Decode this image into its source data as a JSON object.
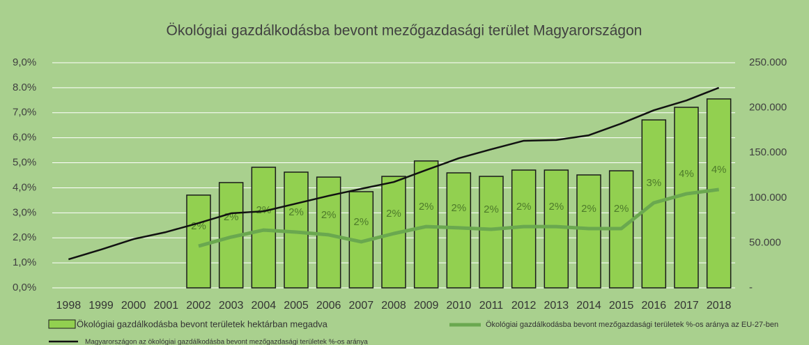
{
  "chart_data": {
    "type": "bar",
    "title": "Ökológiai gazdálkodásba bevont mezőgazdasági terület Magyarországon",
    "categories": [
      "1998",
      "1999",
      "2000",
      "2001",
      "2002",
      "2003",
      "2004",
      "2005",
      "2006",
      "2007",
      "2008",
      "2009",
      "2010",
      "2011",
      "2012",
      "2013",
      "2014",
      "2015",
      "2016",
      "2017",
      "2018"
    ],
    "series": [
      {
        "name": "Ökológiai gazdálkodásba bevont területek hektárban megadva",
        "type": "bar",
        "axis": "y2",
        "color": "#92d050",
        "values": [
          null,
          null,
          null,
          null,
          103000,
          116900,
          133900,
          128500,
          123000,
          106800,
          123800,
          140900,
          127700,
          123800,
          130800,
          130800,
          125400,
          130000,
          186500,
          200500,
          209800
        ]
      },
      {
        "name": "Ökológiai gazdálkodásba bevont mezőgazdasági területek %-os aránya az EU-27-ben",
        "type": "line",
        "color": "#6aa84f",
        "values": [
          null,
          null,
          null,
          null,
          1.67,
          2.03,
          2.31,
          2.23,
          2.12,
          1.84,
          2.17,
          2.45,
          2.4,
          2.34,
          2.45,
          2.45,
          2.37,
          2.37,
          3.4,
          3.76,
          3.93
        ],
        "value_labels": [
          null,
          null,
          null,
          null,
          "2%",
          "2%",
          "2%",
          "2%",
          "2%",
          "2%",
          "2%",
          "2%",
          "2%",
          "2%",
          "2%",
          "2%",
          "2%",
          "2%",
          "3%",
          "4%",
          "4%"
        ]
      },
      {
        "name": "Magyarországon az ökológiai gazdálkodásba bevont mezőgazdasági területek %-os aránya",
        "type": "line",
        "color": "#111111",
        "values": [
          1.14,
          1.53,
          1.95,
          2.23,
          2.59,
          2.98,
          3.06,
          3.37,
          3.68,
          3.96,
          4.23,
          4.71,
          5.18,
          5.54,
          5.88,
          5.91,
          6.1,
          6.57,
          7.1,
          7.49,
          8.0
        ]
      }
    ],
    "ylim": [
      0,
      9
    ],
    "yticks": [
      {
        "value": 0,
        "label": "0,0%"
      },
      {
        "value": 1,
        "label": "1,0%"
      },
      {
        "value": 2,
        "label": "2,0%"
      },
      {
        "value": 3,
        "label": "3,0%"
      },
      {
        "value": 4,
        "label": "4,0%"
      },
      {
        "value": 5,
        "label": "5,0%"
      },
      {
        "value": 6,
        "label": "6,0%"
      },
      {
        "value": 7,
        "label": "7,0%"
      },
      {
        "value": 8,
        "label": "8.0%"
      },
      {
        "value": 9,
        "label": "9,0%"
      }
    ],
    "y2lim": [
      0,
      250000
    ],
    "y2ticks": [
      {
        "value": 0,
        "label": "-"
      },
      {
        "value": 50000,
        "label": "50.000"
      },
      {
        "value": 100000,
        "label": "100.000"
      },
      {
        "value": 150000,
        "label": "150.000"
      },
      {
        "value": 200000,
        "label": "200.000"
      },
      {
        "value": 250000,
        "label": "250.000"
      }
    ],
    "grid": true
  }
}
